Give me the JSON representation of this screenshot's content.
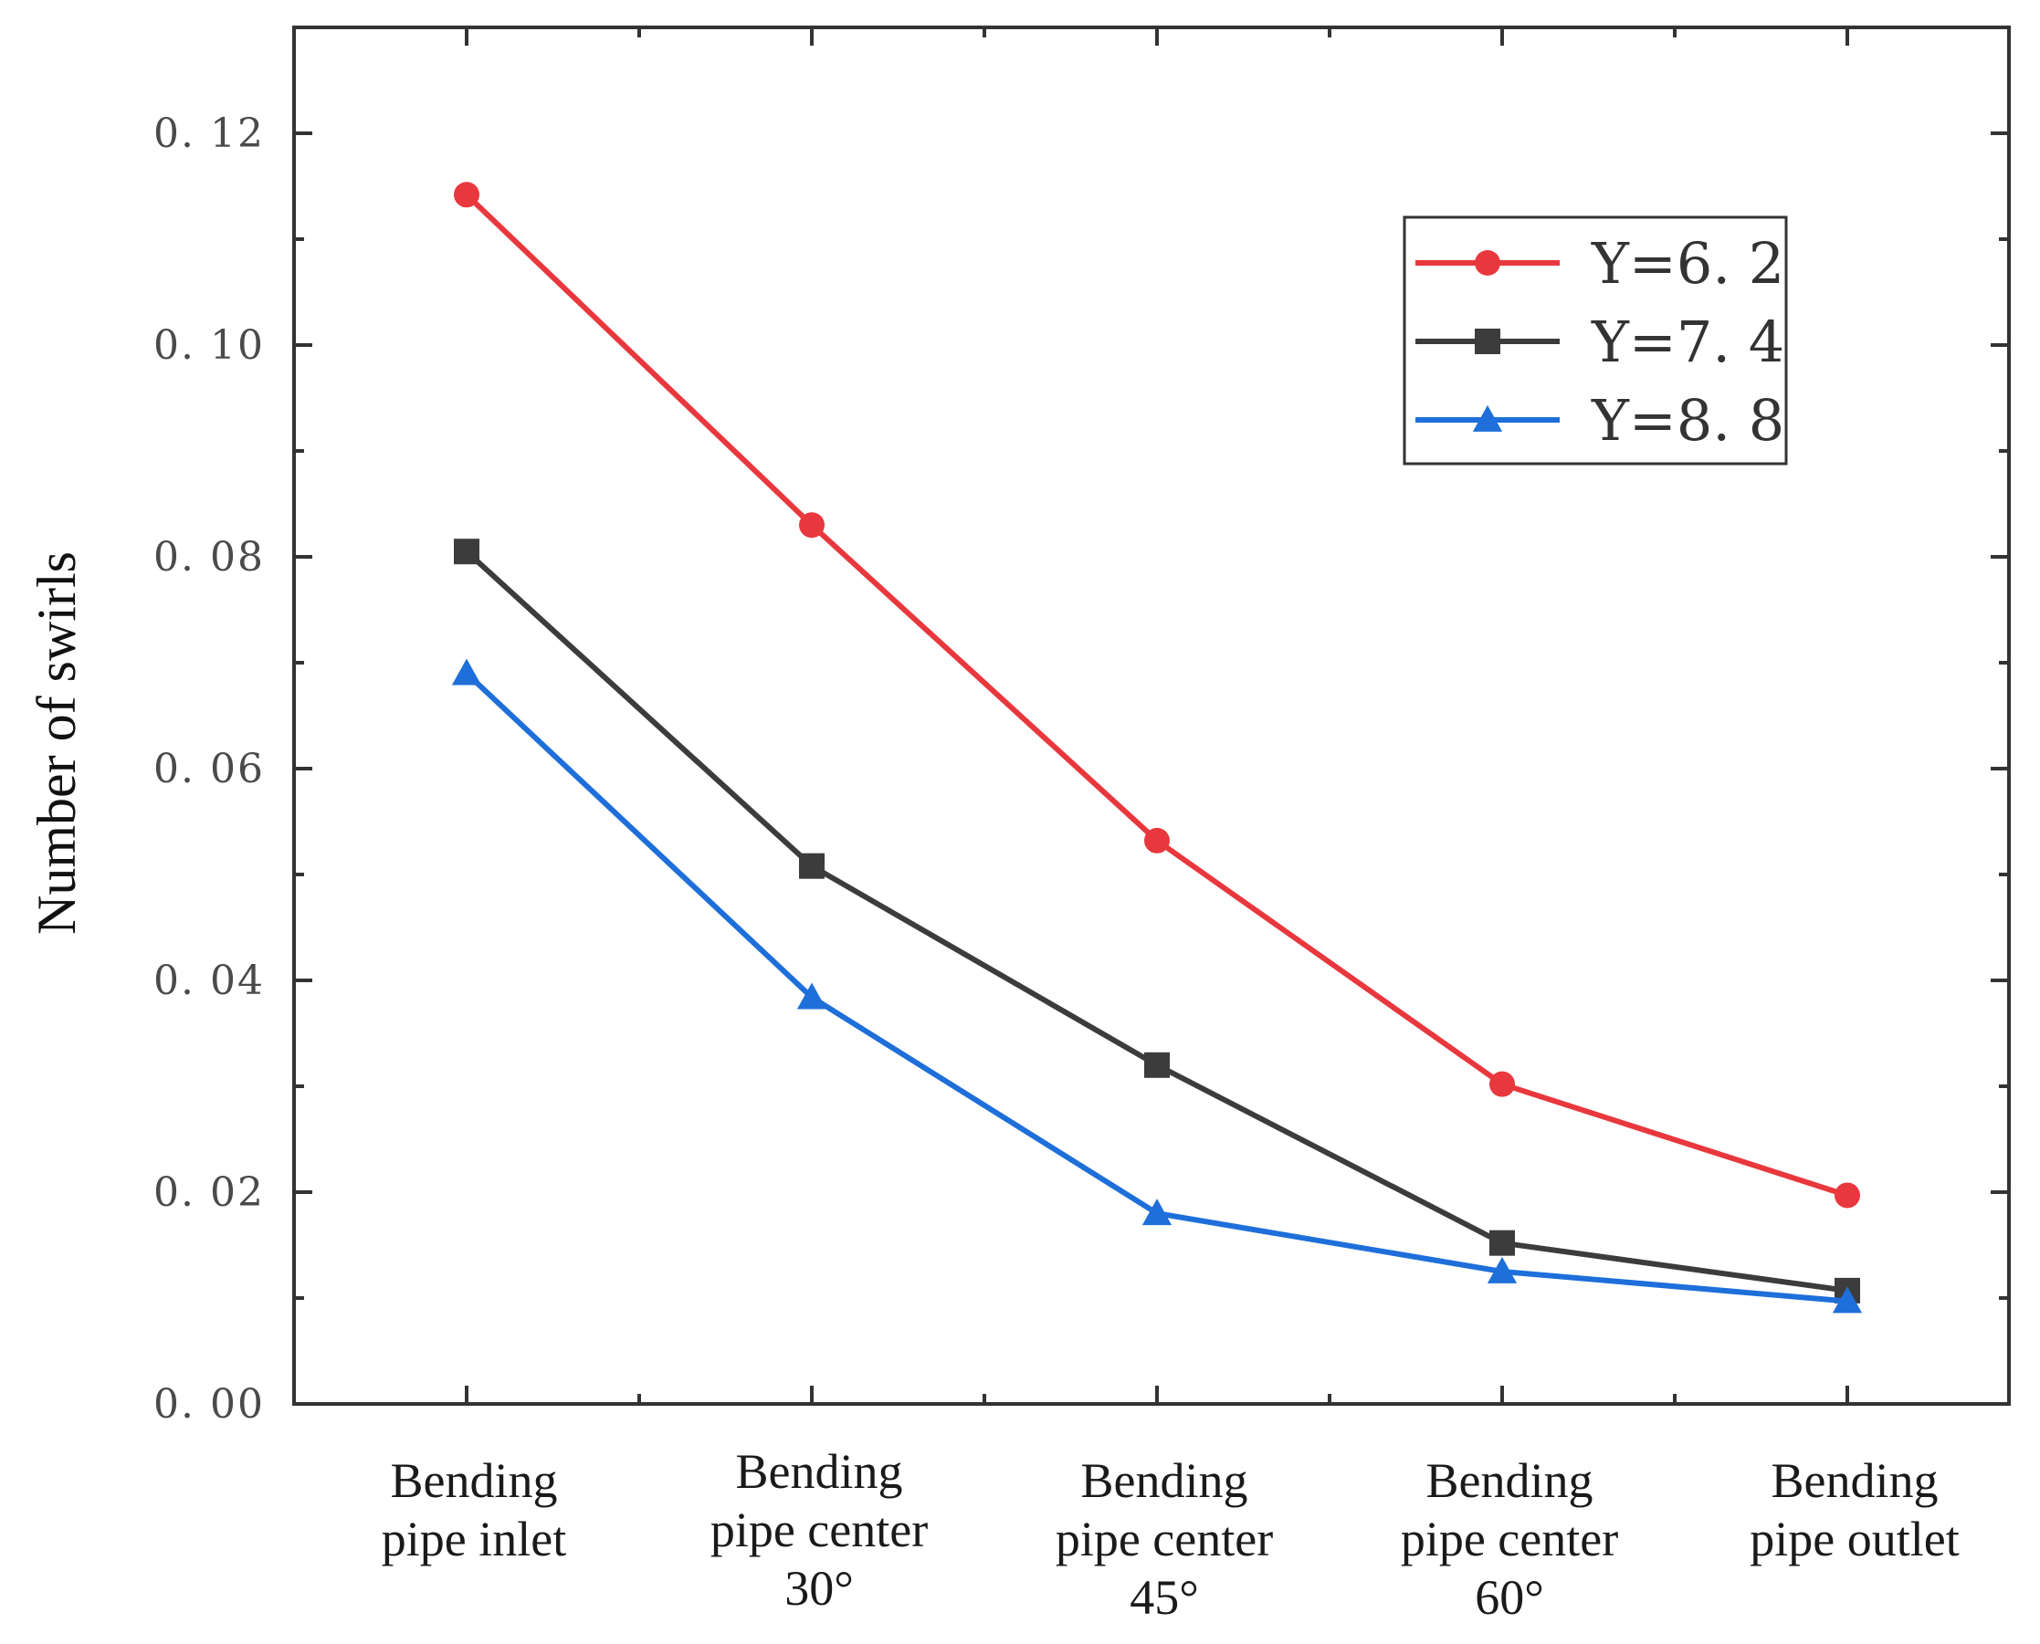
{
  "chart_data": {
    "type": "line",
    "title": "",
    "xlabel": "",
    "ylabel": "Number of swirls",
    "ylim": [
      0,
      0.13
    ],
    "yticks": [
      {
        "value": 0.0,
        "label": "0. 00"
      },
      {
        "value": 0.02,
        "label": "0. 02"
      },
      {
        "value": 0.04,
        "label": "0. 04"
      },
      {
        "value": 0.06,
        "label": "0. 06"
      },
      {
        "value": 0.08,
        "label": "0. 08"
      },
      {
        "value": 0.1,
        "label": "0. 10"
      },
      {
        "value": 0.12,
        "label": "0. 12"
      }
    ],
    "categories": [
      {
        "lines": [
          "Bending",
          "pipe inlet"
        ]
      },
      {
        "lines": [
          "Bending",
          "pipe center",
          "30°"
        ]
      },
      {
        "lines": [
          "Bending",
          "pipe center",
          "45°"
        ]
      },
      {
        "lines": [
          "Bending",
          "pipe center",
          "60°"
        ]
      },
      {
        "lines": [
          "Bending",
          "pipe outlet"
        ]
      }
    ],
    "legend_position": "top-right",
    "series": [
      {
        "name": "Y=6. 2",
        "color": "#e8383d",
        "marker": "circle",
        "values": [
          0.1142,
          0.083,
          0.0532,
          0.0302,
          0.0197
        ]
      },
      {
        "name": "Y=7. 4",
        "color": "#3c3c3c",
        "marker": "square",
        "values": [
          0.0805,
          0.0508,
          0.032,
          0.0152,
          0.0107
        ]
      },
      {
        "name": "Y=8. 8",
        "color": "#1e6fd9",
        "marker": "triangle",
        "values": [
          0.069,
          0.0384,
          0.018,
          0.0125,
          0.0097
        ]
      }
    ]
  }
}
